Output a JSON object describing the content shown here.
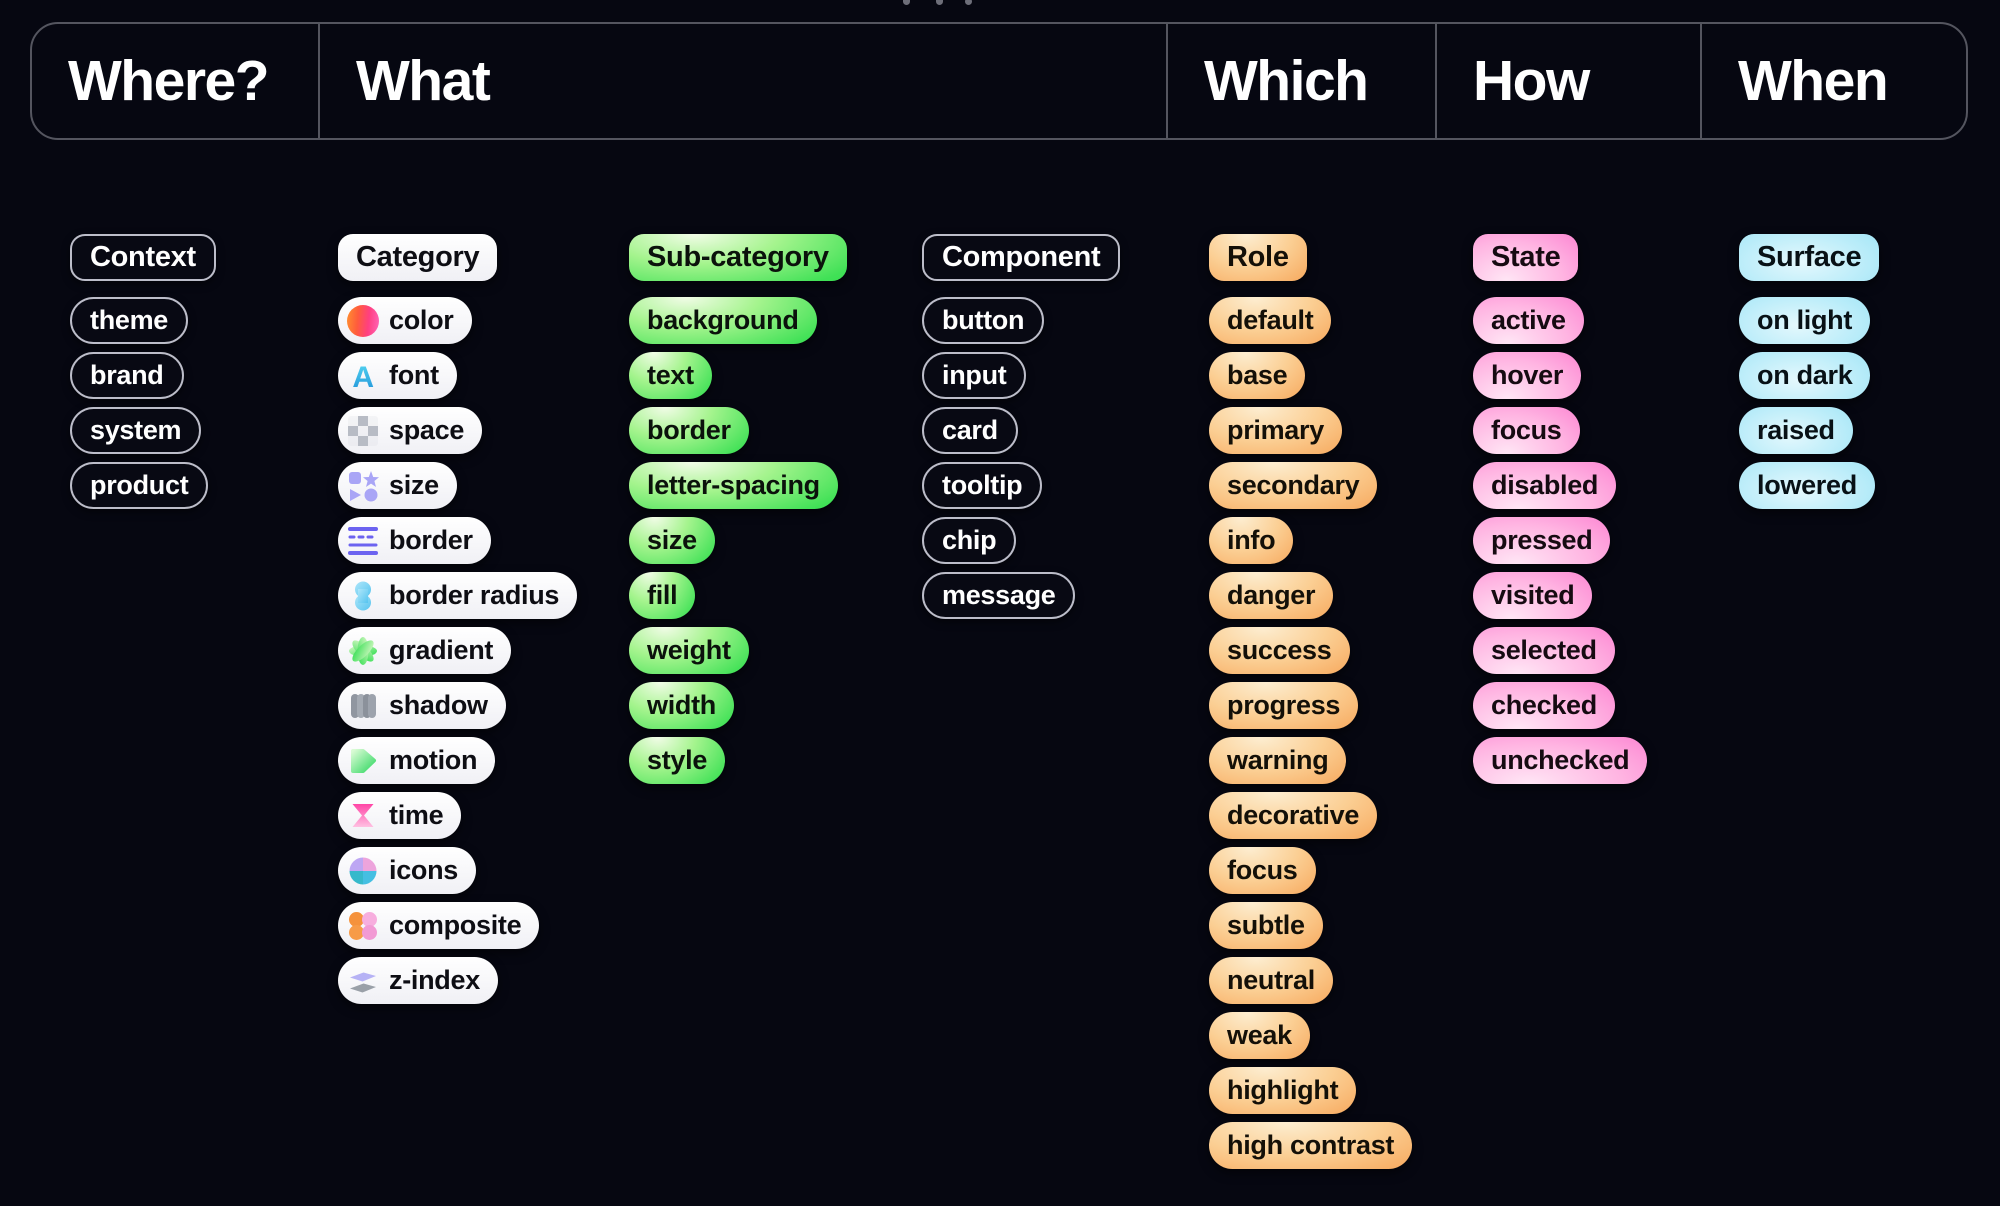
{
  "header": {
    "cells": [
      {
        "label": "Where?"
      },
      {
        "label": "What"
      },
      {
        "label": "Which"
      },
      {
        "label": "How"
      },
      {
        "label": "When"
      }
    ]
  },
  "columns": [
    {
      "id": "context",
      "style": "outline",
      "header": "Context",
      "items": [
        {
          "label": "theme"
        },
        {
          "label": "brand"
        },
        {
          "label": "system"
        },
        {
          "label": "product"
        }
      ]
    },
    {
      "id": "category",
      "style": "white",
      "header": "Category",
      "items": [
        {
          "label": "color",
          "icon": "color-swatch-icon"
        },
        {
          "label": "font",
          "icon": "font-letter-icon"
        },
        {
          "label": "space",
          "icon": "checkerboard-icon"
        },
        {
          "label": "size",
          "icon": "shapes-icon"
        },
        {
          "label": "border",
          "icon": "border-lines-icon"
        },
        {
          "label": "border radius",
          "icon": "capsule-icon"
        },
        {
          "label": "gradient",
          "icon": "gradient-flower-icon"
        },
        {
          "label": "shadow",
          "icon": "shadow-blob-icon"
        },
        {
          "label": "motion",
          "icon": "play-icon"
        },
        {
          "label": "time",
          "icon": "hourglass-icon"
        },
        {
          "label": "icons",
          "icon": "pinwheel-icon"
        },
        {
          "label": "composite",
          "icon": "flower-icon"
        },
        {
          "label": "z-index",
          "icon": "layers-icon"
        }
      ]
    },
    {
      "id": "sub-category",
      "style": "green",
      "header": "Sub-category",
      "items": [
        {
          "label": "background"
        },
        {
          "label": "text"
        },
        {
          "label": "border"
        },
        {
          "label": "letter-spacing"
        },
        {
          "label": "size"
        },
        {
          "label": "fill"
        },
        {
          "label": "weight"
        },
        {
          "label": "width"
        },
        {
          "label": "style"
        }
      ]
    },
    {
      "id": "component",
      "style": "outline",
      "header": "Component",
      "items": [
        {
          "label": "button"
        },
        {
          "label": "input"
        },
        {
          "label": "card"
        },
        {
          "label": "tooltip"
        },
        {
          "label": "chip"
        },
        {
          "label": "message"
        }
      ]
    },
    {
      "id": "role",
      "style": "orange",
      "header": "Role",
      "items": [
        {
          "label": "default"
        },
        {
          "label": "base"
        },
        {
          "label": "primary"
        },
        {
          "label": "secondary"
        },
        {
          "label": "info"
        },
        {
          "label": "danger"
        },
        {
          "label": "success"
        },
        {
          "label": "progress"
        },
        {
          "label": "warning"
        },
        {
          "label": "decorative"
        },
        {
          "label": "focus"
        },
        {
          "label": "subtle"
        },
        {
          "label": "neutral"
        },
        {
          "label": "weak"
        },
        {
          "label": "highlight"
        },
        {
          "label": "high contrast"
        }
      ]
    },
    {
      "id": "state",
      "style": "pink",
      "header": "State",
      "items": [
        {
          "label": "active"
        },
        {
          "label": "hover"
        },
        {
          "label": "focus"
        },
        {
          "label": "disabled"
        },
        {
          "label": "pressed"
        },
        {
          "label": "visited"
        },
        {
          "label": "selected"
        },
        {
          "label": "checked"
        },
        {
          "label": "unchecked"
        }
      ]
    },
    {
      "id": "surface",
      "style": "blue",
      "header": "Surface",
      "items": [
        {
          "label": "on light"
        },
        {
          "label": "on dark"
        },
        {
          "label": "raised"
        },
        {
          "label": "lowered"
        }
      ]
    }
  ],
  "colors": {
    "page_background": "#060711",
    "header_border": "#54555f",
    "outline_pill_border": "#bcbdc9",
    "white_pill": "#ffffff",
    "green_accent": "#2fdd4e",
    "orange_accent": "#f59a45",
    "pink_accent": "#fa63c8",
    "blue_accent": "#4ac6ef",
    "text_on_dark": "#ffffff",
    "text_on_color": "#0e0e14"
  }
}
